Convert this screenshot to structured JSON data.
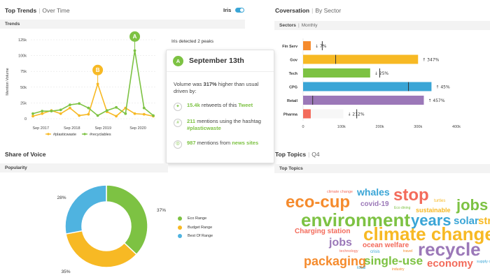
{
  "trends": {
    "title": "Top Trends",
    "subtitle": "Over Time",
    "toggle_label": "Iris",
    "strip_label": "Trends",
    "peak_note": "Iris detected 2 peaks",
    "y_axis_label": "Mention Volume",
    "peaks": [
      "A",
      "B"
    ],
    "colors": {
      "plasticwaste": "#f7b924",
      "recyclables": "#7dc243"
    },
    "chart_data": {
      "type": "line",
      "ylabel": "Mention Volume",
      "y_ticks": [
        "0",
        "25k",
        "50k",
        "75k",
        "100k",
        "125k"
      ],
      "ylim": [
        0,
        125000
      ],
      "x_ticks": [
        "Sep 2017",
        "Sep 2018",
        "Sep 2019",
        "Sep 2020"
      ],
      "series": [
        {
          "name": "#plasticwaste",
          "values": [
            4000,
            8000,
            13000,
            8000,
            17000,
            5000,
            7000,
            55000,
            11000,
            4000,
            17000,
            8000,
            7000,
            4000
          ]
        },
        {
          "name": "#recyclables",
          "values": [
            8000,
            12000,
            12000,
            14000,
            22000,
            24000,
            17000,
            5000,
            13000,
            18000,
            8000,
            108000,
            17000,
            5000
          ]
        }
      ]
    }
  },
  "tooltip": {
    "badge": "A",
    "date": "September 13th",
    "summary_pre": "Volume was ",
    "summary_pct": "317%",
    "summary_post": " higher than usual driven by:",
    "row1_num": "15.4k",
    "row1_text": " retweets of this ",
    "row1_link": "Tweet",
    "row2_num": "211",
    "row2_text": " mentions using the hashtag ",
    "row2_tag": "#plasticwaste",
    "row3_num": "987",
    "row3_text": " mentions from ",
    "row3_link": "news sites"
  },
  "conversation": {
    "title": "Coversation",
    "subtitle": "By Sector",
    "strip_label": "Sectors",
    "strip_sub": "Monthly",
    "chart_data": {
      "type": "bar",
      "orientation": "horizontal",
      "categories": [
        "Fin Serv",
        "Gov",
        "Tech",
        "CPG",
        "Retail",
        "Pharma"
      ],
      "values": [
        20000,
        300000,
        175000,
        335000,
        315000,
        20000
      ],
      "baseline": [
        50000,
        85000,
        200000,
        275000,
        25000,
        140000
      ],
      "deltas": [
        "↓ 7%",
        "↑ 347%",
        "↓ 25%",
        "↑ 45%",
        "↑ 457%",
        "↓ 212%"
      ],
      "colors": [
        "#f58b2d",
        "#f7b924",
        "#7dc243",
        "#3aa5d6",
        "#9b78b8",
        "#f36b5b"
      ],
      "x_ticks": [
        "0",
        "100k",
        "200k",
        "300k",
        "400k"
      ],
      "xlim": [
        0,
        400000
      ]
    }
  },
  "share_of_voice": {
    "title": "Share of Voice",
    "strip_label": "Popularity",
    "chart_data": {
      "type": "pie",
      "labels": [
        "Eco Range",
        "Budget Range",
        "Best Of Range"
      ],
      "values": [
        37,
        35,
        28
      ],
      "value_labels": [
        "37%",
        "35%",
        "28%"
      ],
      "colors": [
        "#7dc243",
        "#f7b924",
        "#4fb3e0"
      ]
    }
  },
  "topics": {
    "title": "Top Topics",
    "subtitle": "Q4",
    "strip_label": "Top Topics",
    "words": [
      {
        "text": "climate change",
        "color": "#f36b5b"
      },
      {
        "text": "whales",
        "color": "#3aa5d6"
      },
      {
        "text": "stop",
        "color": "#f36b5b"
      },
      {
        "text": "turtles",
        "color": "#f7b924"
      },
      {
        "text": "eco-cup",
        "color": "#f58b2d"
      },
      {
        "text": "covid-19",
        "color": "#9b78b8"
      },
      {
        "text": "Eco dining",
        "color": "#7dc243"
      },
      {
        "text": "sustainable",
        "color": "#f7b924"
      },
      {
        "text": "jobs",
        "color": "#7dc243"
      },
      {
        "text": "environment",
        "color": "#7dc243"
      },
      {
        "text": "years",
        "color": "#3aa5d6"
      },
      {
        "text": "solar",
        "color": "#3aa5d6"
      },
      {
        "text": "str",
        "color": "#f7b924"
      },
      {
        "text": "Charging station",
        "color": "#f36b5b"
      },
      {
        "text": "climate change",
        "color": "#f7b924"
      },
      {
        "text": "jobs",
        "color": "#9b78b8"
      },
      {
        "text": "ocean welfare",
        "color": "#f36b5b"
      },
      {
        "text": "recycle",
        "color": "#9b78b8"
      },
      {
        "text": "technology",
        "color": "#f36b5b"
      },
      {
        "text": "crisis",
        "color": "#3aa5d6"
      },
      {
        "text": "travel",
        "color": "#f58b2d"
      },
      {
        "text": "packaging",
        "color": "#f58b2d"
      },
      {
        "text": "single-use",
        "color": "#7dc243"
      },
      {
        "text": "economy",
        "color": "#f36b5b"
      },
      {
        "text": "supply c",
        "color": "#3aa5d6"
      },
      {
        "text": "local",
        "color": "#3aa5d6"
      },
      {
        "text": "industry",
        "color": "#f58b2d"
      }
    ]
  }
}
